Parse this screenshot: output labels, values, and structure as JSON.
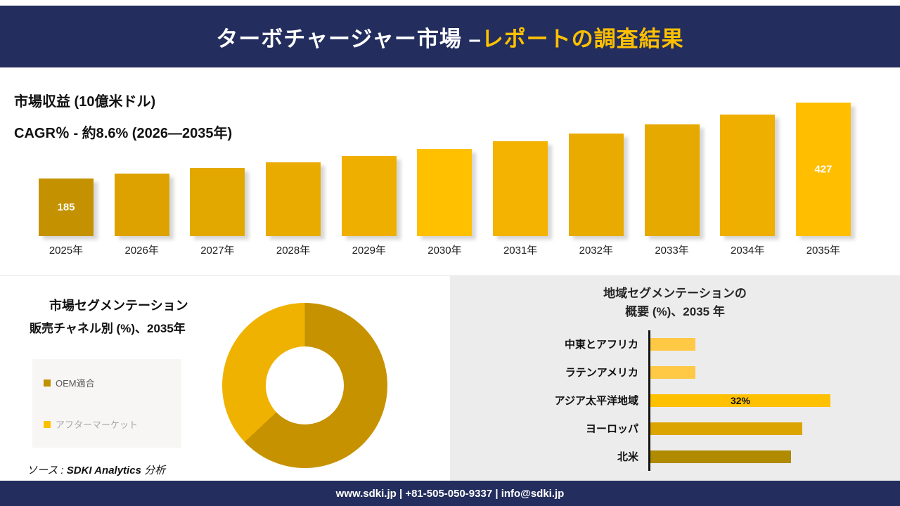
{
  "header": {
    "title_part1": "ターボチャージャー市場 –",
    "title_part2": "レポートの調査結果"
  },
  "revenue": {
    "title": "市場収益 (10億米ドル)",
    "cagr": "CAGR％ - 約8.6% (2026―2035年)"
  },
  "segmentation": {
    "title_line1": "市場セグメンテーション",
    "title_line2": "販売チャネル別 (%)、2035年",
    "legend": [
      {
        "label": "OEM適合",
        "color": "#BF9000",
        "text_color": "#595959"
      },
      {
        "label": "アフターマーケット",
        "color": "#FFC000",
        "text_color": "#A6A6A6"
      }
    ],
    "source_prefix": "ソース : ",
    "source_brand": "SDKI Analytics",
    "source_suffix": " 分析"
  },
  "region": {
    "title_line1": "地域セグメンテーションの",
    "title_line2": "概要 (%)、2035 年"
  },
  "footer": {
    "text": "www.sdki.jp | +81-505-050-9337 | info@sdki.jp"
  },
  "colors": {
    "navy": "#232E5E",
    "gold": "#FFC000",
    "panel_gray": "#ECECEC"
  },
  "chart_data": [
    {
      "type": "bar",
      "title": "市場収益 (10億米ドル)",
      "subtitle": "CAGR％ - 約8.6% (2026―2035年)",
      "categories": [
        "2025年",
        "2026年",
        "2027年",
        "2028年",
        "2029年",
        "2030年",
        "2031年",
        "2032年",
        "2033年",
        "2034年",
        "2035年"
      ],
      "values": [
        185,
        201,
        218,
        237,
        257,
        279,
        303,
        329,
        358,
        389,
        427
      ],
      "labeled_points": [
        {
          "index": 0,
          "text": "185"
        },
        {
          "index": 10,
          "text": "427"
        }
      ],
      "colors": [
        "#C49200",
        "#DDA200",
        "#E3A800",
        "#E9AB00",
        "#EFAF00",
        "#FFC000",
        "#F3B300",
        "#E9AB00",
        "#E5A900",
        "#EFAF00",
        "#FFBE00"
      ],
      "xlabel": "",
      "ylabel": "",
      "ylim": [
        0,
        427
      ],
      "grid": false,
      "legend_position": "none"
    },
    {
      "type": "pie",
      "title": "市場セグメンテーション 販売チャネル別 (%)、2035年",
      "categories": [
        "OEM適合",
        "アフターマーケット"
      ],
      "values": [
        63,
        37
      ],
      "colors": [
        "#C69200",
        "#F0B200"
      ],
      "donut": true,
      "legend_position": "left"
    },
    {
      "type": "bar",
      "orientation": "horizontal",
      "title": "地域セグメンテーションの概要 (%)、2035 年",
      "categories": [
        "中東とアフリカ",
        "ラテンアメリカ",
        "アジア太平洋地域",
        "ヨーロッパ",
        "北米"
      ],
      "values": [
        8,
        8,
        32,
        27,
        25
      ],
      "bar_labels": [
        "",
        "",
        "32%",
        "",
        ""
      ],
      "colors": [
        "#FFC845",
        "#FFC845",
        "#FFC000",
        "#DCA400",
        "#B08A00"
      ],
      "xlim": [
        0,
        40
      ],
      "grid": false,
      "legend_position": "none"
    }
  ]
}
